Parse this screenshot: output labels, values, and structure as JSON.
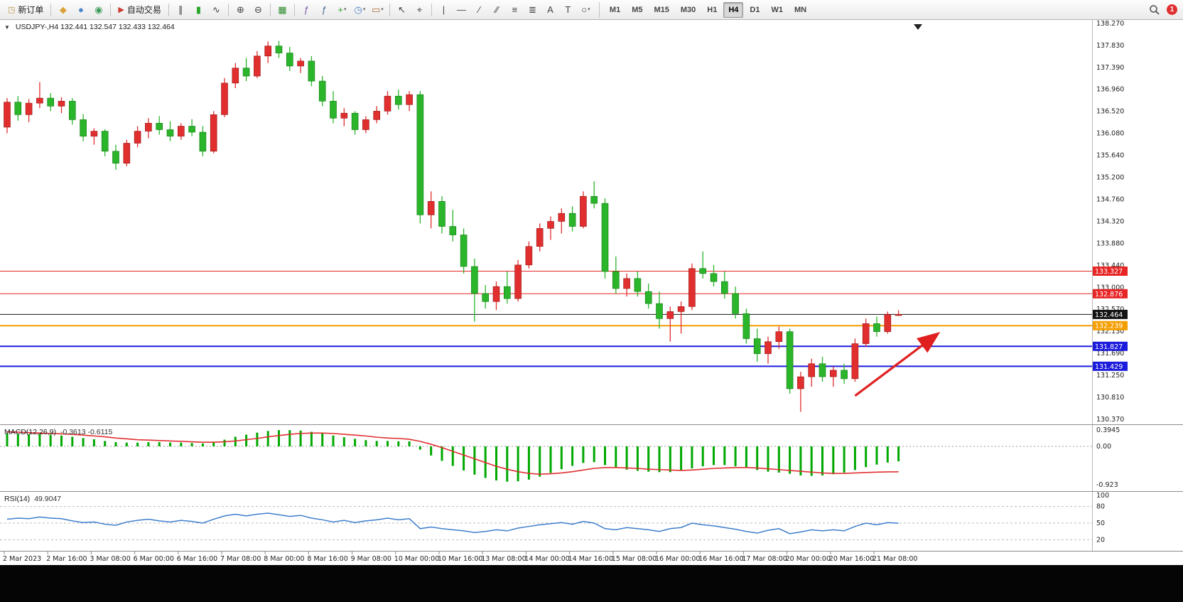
{
  "toolbar": {
    "caret_glyph": "▾",
    "badge_count": "1",
    "groups": [
      {
        "items": [
          {
            "name": "new-order-button",
            "icon_glyph": "◳",
            "icon_color": "#b8913f",
            "label": "新订单"
          }
        ]
      },
      {
        "items": [
          {
            "name": "market-watch-icon",
            "glyph": "◆",
            "color": "#d9a23c"
          },
          {
            "name": "data-window-icon",
            "glyph": "●",
            "color": "#4a86c8"
          },
          {
            "name": "strategy-tester-icon",
            "glyph": "◉",
            "color": "#3f9d5a"
          }
        ]
      },
      {
        "items": [
          {
            "name": "autotrade-button",
            "icon_glyph": "▶",
            "icon_color": "#cc3a2f",
            "label": "自动交易"
          }
        ]
      },
      {
        "items": [
          {
            "name": "bars-chart-icon",
            "glyph": "∥",
            "color": "#444444"
          },
          {
            "name": "candles-chart-icon",
            "glyph": "▮",
            "color": "#2aa52a"
          },
          {
            "name": "line-chart-icon",
            "glyph": "∿",
            "color": "#444444"
          }
        ]
      },
      {
        "items": [
          {
            "name": "zoom-in-icon",
            "glyph": "⊕",
            "color": "#444444"
          },
          {
            "name": "zoom-out-icon",
            "glyph": "⊖",
            "color": "#444444"
          }
        ]
      },
      {
        "items": [
          {
            "name": "tile-windows-icon",
            "glyph": "▦",
            "color": "#2e8b2e"
          }
        ]
      },
      {
        "items": [
          {
            "name": "indicators-icon",
            "glyph": "ƒ",
            "color": "#7a52a8"
          },
          {
            "name": "indicator-window-icon",
            "glyph": "ƒ",
            "color": "#446699"
          },
          {
            "name": "add-indicator-icon",
            "glyph": "+",
            "color": "#2aa52a",
            "dropdown": true
          },
          {
            "name": "timeframe-clock-icon",
            "glyph": "◷",
            "color": "#4a86c8",
            "dropdown": true
          },
          {
            "name": "template-chart-icon",
            "glyph": "▭",
            "color": "#b06a32",
            "dropdown": true
          }
        ]
      },
      {
        "items": [
          {
            "name": "cursor-icon",
            "glyph": "↖",
            "color": "#444444"
          },
          {
            "name": "crosshair-icon",
            "glyph": "⌖",
            "color": "#444444"
          }
        ]
      },
      {
        "items": [
          {
            "name": "vertical-line-icon",
            "glyph": "|",
            "color": "#444444"
          },
          {
            "name": "horizontal-line-icon",
            "glyph": "—",
            "color": "#444444"
          },
          {
            "name": "trendline-icon",
            "glyph": "∕",
            "color": "#444444"
          },
          {
            "name": "channel-icon",
            "glyph": "∕∕",
            "color": "#444444"
          },
          {
            "name": "fibonacci-icon",
            "glyph": "≡",
            "color": "#444444"
          },
          {
            "name": "objects-list-icon",
            "glyph": "≣",
            "color": "#444444"
          },
          {
            "name": "text-icon",
            "glyph": "A",
            "color": "#444444"
          },
          {
            "name": "label-icon",
            "glyph": "T",
            "color": "#444444"
          },
          {
            "name": "shapes-icon",
            "glyph": "○",
            "color": "#444444",
            "dropdown": true
          }
        ]
      }
    ],
    "timeframes": {
      "items": [
        "M1",
        "M5",
        "M15",
        "M30",
        "H1",
        "H4",
        "D1",
        "W1",
        "MN"
      ],
      "active": "H4"
    }
  },
  "chart": {
    "dropdown_glyph": "▼",
    "symbol_header": "USDJPY-,H4  132.441 132.547 132.433 132.464",
    "price_axis": [
      "138.270",
      "137.830",
      "137.390",
      "136.960",
      "136.520",
      "136.080",
      "135.640",
      "135.200",
      "134.760",
      "134.320",
      "133.880",
      "133.440",
      "133.000",
      "132.570",
      "132.130",
      "131.690",
      "131.250",
      "130.810",
      "130.370"
    ],
    "time_axis": [
      "2 Mar 2023",
      "2 Mar 16:00",
      "3 Mar 08:00",
      "6 Mar 00:00",
      "6 Mar 16:00",
      "7 Mar 08:00",
      "8 Mar 00:00",
      "8 Mar 16:00",
      "9 Mar 08:00",
      "10 Mar 00:00",
      "10 Mar 16:00",
      "13 Mar 08:00",
      "14 Mar 00:00",
      "14 Mar 16:00",
      "15 Mar 08:00",
      "16 Mar 00:00",
      "16 Mar 16:00",
      "17 Mar 08:00",
      "20 Mar 00:00",
      "20 Mar 16:00",
      "21 Mar 08:00"
    ],
    "levels": [
      {
        "label": "133.327",
        "value": 133.327,
        "color": "#e82525",
        "width": 1
      },
      {
        "label": "132.876",
        "value": 132.876,
        "color": "#e82525",
        "width": 1
      },
      {
        "label": "132.464",
        "value": 132.464,
        "color": "#141414",
        "width": 1
      },
      {
        "label": "132.239",
        "value": 132.239,
        "color": "#f59e00",
        "width": 2
      },
      {
        "label": "131.827",
        "value": 131.827,
        "color": "#1c1cdd",
        "width": 2
      },
      {
        "label": "131.429",
        "value": 131.429,
        "color": "#1c1cdd",
        "width": 2
      }
    ]
  },
  "macd": {
    "title": "MACD(12,26,9)",
    "values": "-0.3613 -0.6115",
    "scale": [
      "0.3945",
      "0.00",
      "-0.923"
    ]
  },
  "rsi": {
    "title": "RSI(14)",
    "value": "49.9047",
    "scale": [
      "100",
      "80",
      "50",
      "20"
    ],
    "level_values": [
      80,
      50,
      20
    ]
  },
  "chart_data": {
    "type": "candlestick",
    "symbol": "USDJPY",
    "timeframe": "H4",
    "title": "USDJPY-,H4",
    "ylim": [
      130.37,
      138.27
    ],
    "grid": false,
    "colors": {
      "up": "#e12e2e",
      "down": "#2bb52b",
      "up_edge": "#951515",
      "down_edge": "#0e7a0e",
      "macd_hist": "#00a800",
      "macd_signal": "#e03030",
      "rsi_line": "#3d7ecc",
      "arrow": "#e02020"
    },
    "level_prices": [
      133.327,
      132.876,
      132.464,
      132.239,
      131.827,
      131.429
    ],
    "current_ohlc": {
      "open": 132.441,
      "high": 132.547,
      "low": 132.433,
      "close": 132.464
    },
    "ohlc": [
      [
        136.2,
        136.78,
        136.08,
        136.7
      ],
      [
        136.7,
        136.82,
        136.33,
        136.45
      ],
      [
        136.45,
        136.76,
        136.3,
        136.68
      ],
      [
        136.68,
        137.1,
        136.58,
        136.78
      ],
      [
        136.78,
        136.88,
        136.52,
        136.62
      ],
      [
        136.62,
        136.8,
        136.48,
        136.72
      ],
      [
        136.72,
        136.78,
        136.25,
        136.35
      ],
      [
        136.35,
        136.46,
        135.92,
        136.02
      ],
      [
        136.02,
        136.18,
        135.85,
        136.12
      ],
      [
        136.12,
        136.16,
        135.62,
        135.72
      ],
      [
        135.72,
        135.85,
        135.35,
        135.48
      ],
      [
        135.48,
        135.95,
        135.42,
        135.88
      ],
      [
        135.88,
        136.22,
        135.8,
        136.12
      ],
      [
        136.12,
        136.38,
        135.98,
        136.28
      ],
      [
        136.28,
        136.42,
        136.05,
        136.15
      ],
      [
        136.15,
        136.32,
        135.92,
        136.02
      ],
      [
        136.02,
        136.28,
        135.95,
        136.22
      ],
      [
        136.22,
        136.36,
        136.02,
        136.1
      ],
      [
        136.1,
        136.22,
        135.62,
        135.72
      ],
      [
        135.72,
        136.52,
        135.68,
        136.45
      ],
      [
        136.45,
        137.18,
        136.4,
        137.08
      ],
      [
        137.08,
        137.48,
        136.98,
        137.38
      ],
      [
        137.38,
        137.58,
        137.12,
        137.22
      ],
      [
        137.22,
        137.72,
        137.18,
        137.62
      ],
      [
        137.62,
        137.91,
        137.48,
        137.82
      ],
      [
        137.82,
        137.92,
        137.58,
        137.68
      ],
      [
        137.68,
        137.8,
        137.32,
        137.42
      ],
      [
        137.42,
        137.58,
        137.28,
        137.52
      ],
      [
        137.52,
        137.62,
        137.02,
        137.12
      ],
      [
        137.12,
        137.22,
        136.62,
        136.72
      ],
      [
        136.72,
        136.92,
        136.28,
        136.38
      ],
      [
        136.38,
        136.58,
        136.22,
        136.48
      ],
      [
        136.48,
        136.52,
        136.05,
        136.15
      ],
      [
        136.15,
        136.42,
        136.08,
        136.35
      ],
      [
        136.35,
        136.62,
        136.28,
        136.52
      ],
      [
        136.52,
        136.92,
        136.45,
        136.82
      ],
      [
        136.82,
        136.95,
        136.55,
        136.65
      ],
      [
        136.65,
        136.92,
        136.52,
        136.85
      ],
      [
        136.85,
        136.92,
        134.28,
        134.45
      ],
      [
        134.45,
        134.92,
        134.18,
        134.72
      ],
      [
        134.72,
        134.82,
        134.08,
        134.22
      ],
      [
        134.22,
        134.55,
        133.92,
        134.05
      ],
      [
        134.05,
        134.18,
        133.28,
        133.42
      ],
      [
        133.42,
        133.58,
        132.32,
        132.88
      ],
      [
        132.88,
        133.05,
        132.58,
        132.72
      ],
      [
        132.72,
        133.12,
        132.55,
        133.02
      ],
      [
        133.02,
        133.32,
        132.68,
        132.78
      ],
      [
        132.78,
        133.55,
        132.72,
        133.45
      ],
      [
        133.45,
        133.92,
        133.38,
        133.82
      ],
      [
        133.82,
        134.28,
        133.72,
        134.18
      ],
      [
        134.18,
        134.42,
        133.95,
        134.32
      ],
      [
        134.32,
        134.58,
        134.08,
        134.48
      ],
      [
        134.48,
        134.62,
        134.12,
        134.22
      ],
      [
        134.22,
        134.92,
        134.18,
        134.82
      ],
      [
        134.82,
        135.12,
        134.58,
        134.68
      ],
      [
        134.68,
        134.78,
        133.18,
        133.32
      ],
      [
        133.32,
        133.62,
        132.88,
        132.98
      ],
      [
        132.98,
        133.28,
        132.82,
        133.18
      ],
      [
        133.18,
        133.32,
        132.82,
        132.92
      ],
      [
        132.92,
        133.08,
        132.58,
        132.68
      ],
      [
        132.68,
        132.92,
        132.18,
        132.38
      ],
      [
        132.38,
        132.62,
        131.92,
        132.52
      ],
      [
        132.52,
        132.72,
        132.08,
        132.62
      ],
      [
        132.62,
        133.48,
        132.55,
        133.38
      ],
      [
        133.38,
        133.72,
        133.18,
        133.28
      ],
      [
        133.28,
        133.45,
        133.02,
        133.12
      ],
      [
        133.12,
        133.32,
        132.78,
        132.88
      ],
      [
        132.88,
        133.02,
        132.38,
        132.48
      ],
      [
        132.48,
        132.58,
        131.88,
        131.98
      ],
      [
        131.98,
        132.18,
        131.52,
        131.68
      ],
      [
        131.68,
        132.02,
        131.48,
        131.92
      ],
      [
        131.92,
        132.22,
        131.78,
        132.12
      ],
      [
        132.12,
        132.18,
        130.88,
        130.98
      ],
      [
        130.98,
        131.32,
        130.52,
        131.22
      ],
      [
        131.22,
        131.58,
        131.02,
        131.48
      ],
      [
        131.48,
        131.62,
        131.12,
        131.22
      ],
      [
        131.22,
        131.42,
        131.02,
        131.35
      ],
      [
        131.35,
        131.48,
        131.08,
        131.18
      ],
      [
        131.18,
        131.98,
        131.12,
        131.88
      ],
      [
        131.88,
        132.38,
        131.82,
        132.28
      ],
      [
        132.28,
        132.42,
        132.02,
        132.12
      ],
      [
        132.12,
        132.52,
        132.08,
        132.46
      ],
      [
        132.441,
        132.547,
        132.433,
        132.464
      ]
    ],
    "macd_main": [
      0.31,
      0.3,
      0.29,
      0.29,
      0.28,
      0.26,
      0.23,
      0.2,
      0.17,
      0.13,
      0.1,
      0.09,
      0.09,
      0.1,
      0.1,
      0.09,
      0.09,
      0.08,
      0.07,
      0.1,
      0.16,
      0.23,
      0.28,
      0.33,
      0.37,
      0.39,
      0.39,
      0.38,
      0.35,
      0.31,
      0.26,
      0.22,
      0.18,
      0.15,
      0.13,
      0.13,
      0.12,
      0.12,
      -0.08,
      -0.22,
      -0.35,
      -0.47,
      -0.58,
      -0.68,
      -0.76,
      -0.82,
      -0.85,
      -0.84,
      -0.8,
      -0.73,
      -0.64,
      -0.55,
      -0.47,
      -0.4,
      -0.38,
      -0.45,
      -0.52,
      -0.56,
      -0.59,
      -0.61,
      -0.62,
      -0.62,
      -0.59,
      -0.53,
      -0.48,
      -0.45,
      -0.45,
      -0.48,
      -0.52,
      -0.57,
      -0.61,
      -0.63,
      -0.66,
      -0.7,
      -0.71,
      -0.7,
      -0.67,
      -0.63,
      -0.57,
      -0.5,
      -0.44,
      -0.39,
      -0.3613
    ],
    "macd_signal": [
      0.35,
      0.34,
      0.33,
      0.32,
      0.31,
      0.3,
      0.29,
      0.27,
      0.25,
      0.23,
      0.2,
      0.18,
      0.16,
      0.15,
      0.14,
      0.13,
      0.12,
      0.11,
      0.1,
      0.1,
      0.11,
      0.13,
      0.16,
      0.19,
      0.23,
      0.26,
      0.29,
      0.31,
      0.32,
      0.32,
      0.31,
      0.29,
      0.27,
      0.25,
      0.22,
      0.2,
      0.19,
      0.17,
      0.12,
      0.05,
      -0.03,
      -0.12,
      -0.21,
      -0.3,
      -0.39,
      -0.48,
      -0.55,
      -0.61,
      -0.65,
      -0.67,
      -0.66,
      -0.64,
      -0.61,
      -0.57,
      -0.53,
      -0.51,
      -0.51,
      -0.52,
      -0.53,
      -0.55,
      -0.56,
      -0.57,
      -0.58,
      -0.57,
      -0.55,
      -0.53,
      -0.52,
      -0.51,
      -0.51,
      -0.52,
      -0.54,
      -0.56,
      -0.58,
      -0.6,
      -0.62,
      -0.64,
      -0.65,
      -0.65,
      -0.64,
      -0.63,
      -0.62,
      -0.615,
      -0.6115
    ],
    "rsi": [
      57,
      59,
      58,
      61,
      59,
      58,
      54,
      51,
      52,
      48,
      46,
      52,
      55,
      57,
      54,
      52,
      55,
      53,
      50,
      57,
      63,
      66,
      63,
      66,
      68,
      65,
      62,
      64,
      59,
      56,
      52,
      55,
      51,
      54,
      56,
      59,
      56,
      58,
      40,
      43,
      40,
      38,
      36,
      33,
      35,
      38,
      36,
      41,
      44,
      47,
      49,
      51,
      48,
      53,
      50,
      40,
      38,
      42,
      40,
      38,
      35,
      40,
      42,
      50,
      47,
      45,
      42,
      39,
      35,
      32,
      37,
      40,
      31,
      34,
      38,
      36,
      38,
      36,
      44,
      50,
      47,
      51,
      49.9
    ],
    "annotations": [
      {
        "type": "arrow",
        "color": "#e02020",
        "x1_bar": 78,
        "y1_price": 130.84,
        "x2_bar": 85.5,
        "y2_price": 132.06
      }
    ]
  }
}
